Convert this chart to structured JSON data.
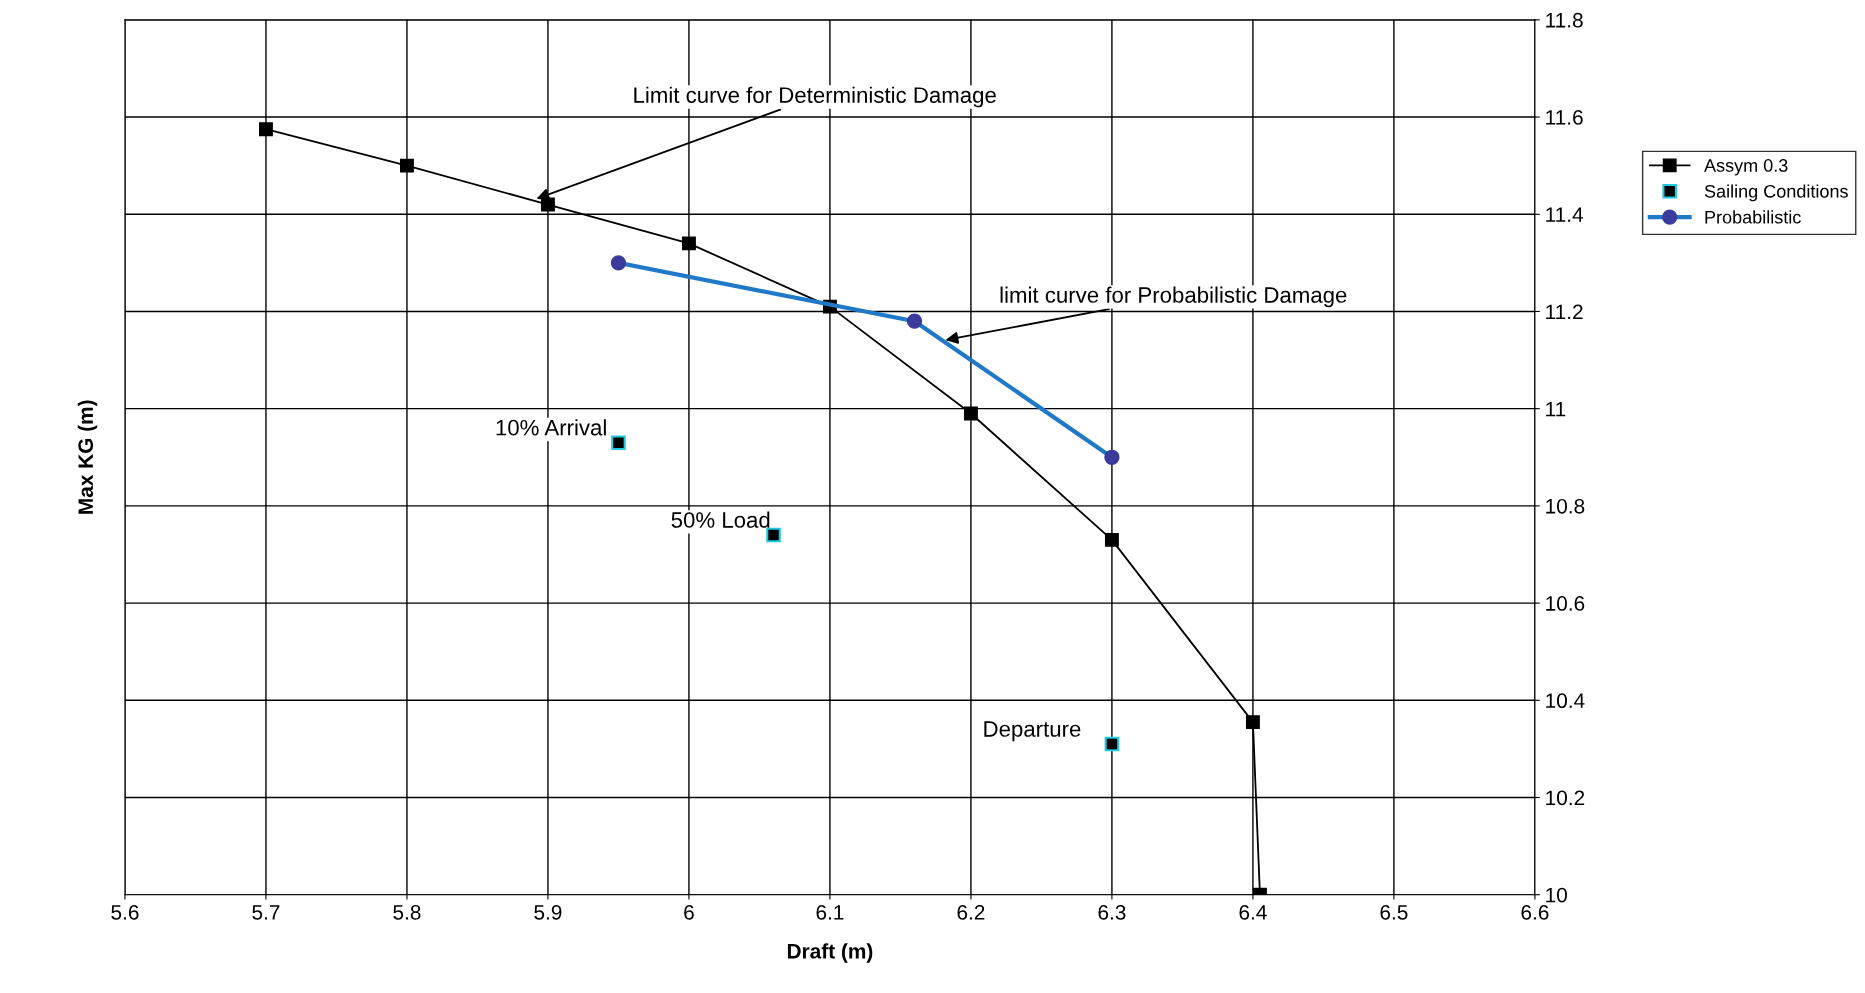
{
  "chart_data": {
    "type": "line",
    "xlabel": "Draft (m)",
    "ylabel": "Max KG (m)",
    "xlim": [
      5.6,
      6.6
    ],
    "xticks": [
      5.6,
      5.7,
      5.8,
      5.9,
      6,
      6.1,
      6.2,
      6.3,
      6.4,
      6.5,
      6.6
    ],
    "ylim": [
      10,
      11.8
    ],
    "yticks": [
      10,
      10.2,
      10.4,
      10.6,
      10.8,
      11,
      11.2,
      11.4,
      11.6,
      11.8
    ],
    "grid": true,
    "legend": "right",
    "series": [
      {
        "name": "Assym 0.3",
        "marker": "square",
        "color": "#000000",
        "x": [
          5.7,
          5.8,
          5.9,
          6.0,
          6.1,
          6.2,
          6.3,
          6.4,
          6.405
        ],
        "values": [
          11.575,
          11.5,
          11.42,
          11.34,
          11.21,
          10.99,
          10.73,
          10.355,
          10.0
        ]
      },
      {
        "name": "Sailing Conditions",
        "type": "scatter",
        "marker": "square",
        "color": "#000000",
        "x": [
          5.95,
          6.06,
          6.3
        ],
        "values": [
          10.93,
          10.74,
          10.31
        ]
      },
      {
        "name": "Probabilistic",
        "type": "line",
        "marker": "circle",
        "color": "#1f78c8",
        "x": [
          5.95,
          6.16,
          6.3
        ],
        "values": [
          11.3,
          11.18,
          10.9
        ]
      }
    ],
    "annotations": [
      {
        "text": "Limit curve for Deterministic Damage",
        "x": 5.89,
        "y": 11.43
      },
      {
        "text": "limit curve for Probabilistic Damage",
        "x": 6.18,
        "y": 11.14
      },
      {
        "text": "10% Arrival",
        "x": 5.95,
        "y": 10.93
      },
      {
        "text": "50% Load",
        "x": 6.06,
        "y": 10.74
      },
      {
        "text": "Departure",
        "x": 6.3,
        "y": 10.31
      }
    ]
  }
}
